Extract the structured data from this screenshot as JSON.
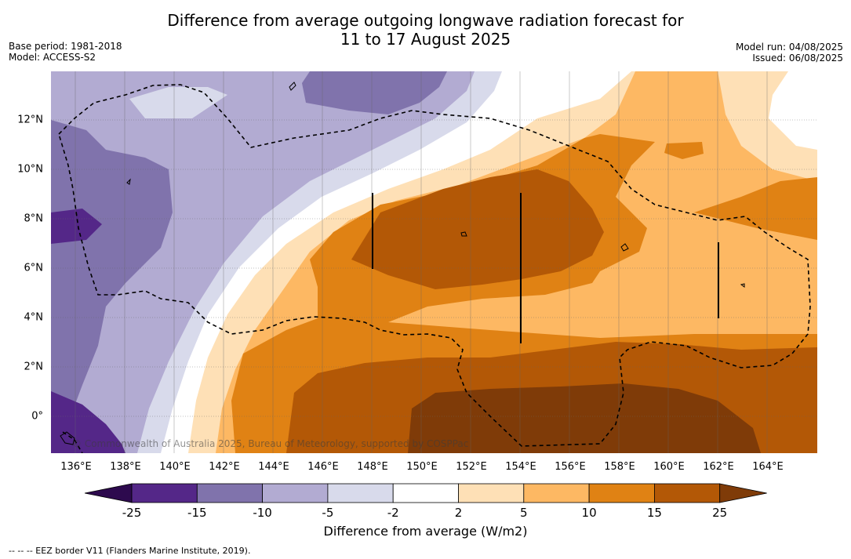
{
  "title_line1": "Difference from average outgoing longwave radiation forecast for",
  "title_line2": "11 to 17 August 2025",
  "base_period": "Base period: 1981-2018",
  "model": "Model: ACCESS-S2",
  "model_run": "Model run: 04/08/2025",
  "issued": "Issued: 06/08/2025",
  "credit": "© Commonwealth of Australia 2025, Bureau of Meteorology, supported by COSPPac",
  "footer": "--  --  -- EEZ border V11 (Flanders Marine Institute, 2019).",
  "lat_labels": [
    "12°N",
    "10°N",
    "8°N",
    "6°N",
    "4°N",
    "2°N",
    "0°"
  ],
  "lon_labels": [
    "136°E",
    "138°E",
    "140°E",
    "142°E",
    "144°E",
    "146°E",
    "148°E",
    "150°E",
    "152°E",
    "154°E",
    "156°E",
    "158°E",
    "160°E",
    "162°E",
    "164°E"
  ],
  "colorbar": {
    "title": "Difference from average (W/m2)",
    "ticks": [
      "-25",
      "-15",
      "-10",
      "-5",
      "-2",
      "2",
      "5",
      "10",
      "15",
      "25"
    ],
    "colors": [
      "#2d0a4e",
      "#542788",
      "#8073ac",
      "#b2abd2",
      "#d8daeb",
      "#ffffff",
      "#fee0b6",
      "#fdb863",
      "#e08214",
      "#b35806",
      "#7f3b08"
    ]
  }
}
